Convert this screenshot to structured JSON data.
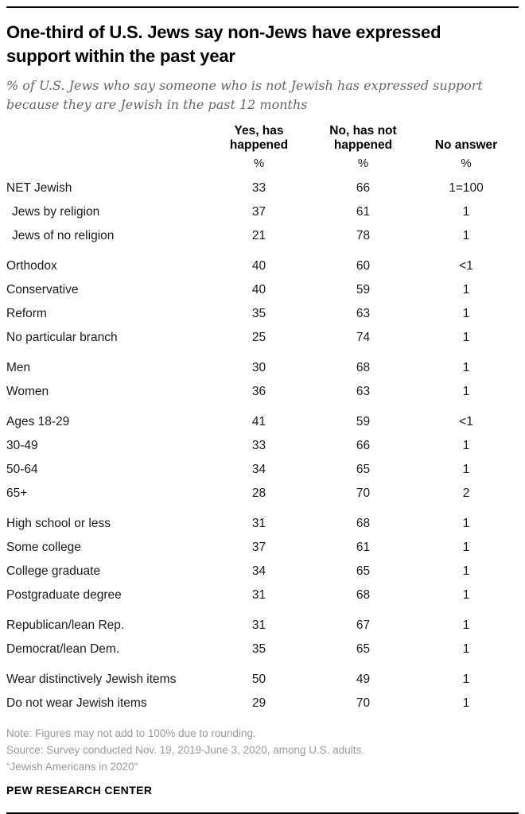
{
  "header": {
    "title": "One-third of U.S. Jews say non-Jews have expressed\nsupport within the past year",
    "subtitle": "% of U.S. Jews who say someone who is not Jewish has expressed support\nbecause they are Jewish in the past 12 months"
  },
  "table": {
    "columns": [
      "Yes, has\nhappened",
      "No, has not\nhappened",
      "No answer"
    ],
    "unit_row": [
      "%",
      "%",
      "%"
    ],
    "groups": [
      {
        "rows": [
          {
            "label": "NET Jewish",
            "indent": false,
            "values": [
              "33",
              "66",
              "1=100"
            ]
          },
          {
            "label": "Jews by religion",
            "indent": true,
            "values": [
              "37",
              "61",
              "1"
            ]
          },
          {
            "label": "Jews of no religion",
            "indent": true,
            "values": [
              "21",
              "78",
              "1"
            ]
          }
        ]
      },
      {
        "rows": [
          {
            "label": "Orthodox",
            "indent": false,
            "values": [
              "40",
              "60",
              "<1"
            ]
          },
          {
            "label": "Conservative",
            "indent": false,
            "values": [
              "40",
              "59",
              "1"
            ]
          },
          {
            "label": "Reform",
            "indent": false,
            "values": [
              "35",
              "63",
              "1"
            ]
          },
          {
            "label": "No particular branch",
            "indent": false,
            "values": [
              "25",
              "74",
              "1"
            ]
          }
        ]
      },
      {
        "rows": [
          {
            "label": "Men",
            "indent": false,
            "values": [
              "30",
              "68",
              "1"
            ]
          },
          {
            "label": "Women",
            "indent": false,
            "values": [
              "36",
              "63",
              "1"
            ]
          }
        ]
      },
      {
        "rows": [
          {
            "label": "Ages 18-29",
            "indent": false,
            "values": [
              "41",
              "59",
              "<1"
            ]
          },
          {
            "label": "30-49",
            "indent": false,
            "values": [
              "33",
              "66",
              "1"
            ]
          },
          {
            "label": "50-64",
            "indent": false,
            "values": [
              "34",
              "65",
              "1"
            ]
          },
          {
            "label": "65+",
            "indent": false,
            "values": [
              "28",
              "70",
              "2"
            ]
          }
        ]
      },
      {
        "rows": [
          {
            "label": "High school or less",
            "indent": false,
            "values": [
              "31",
              "68",
              "1"
            ]
          },
          {
            "label": "Some college",
            "indent": false,
            "values": [
              "37",
              "61",
              "1"
            ]
          },
          {
            "label": "College graduate",
            "indent": false,
            "values": [
              "34",
              "65",
              "1"
            ]
          },
          {
            "label": "Postgraduate degree",
            "indent": false,
            "values": [
              "31",
              "68",
              "1"
            ]
          }
        ]
      },
      {
        "rows": [
          {
            "label": "Republican/lean Rep.",
            "indent": false,
            "values": [
              "31",
              "67",
              "1"
            ]
          },
          {
            "label": "Democrat/lean Dem.",
            "indent": false,
            "values": [
              "35",
              "65",
              "1"
            ]
          }
        ]
      },
      {
        "rows": [
          {
            "label": "Wear distinctively Jewish items",
            "indent": false,
            "values": [
              "50",
              "49",
              "1"
            ]
          },
          {
            "label": "Do not wear Jewish items",
            "indent": false,
            "values": [
              "29",
              "70",
              "1"
            ]
          }
        ]
      }
    ]
  },
  "footer": {
    "note": "Note: Figures may not add to 100% due to rounding.",
    "source": "Source: Survey conducted Nov. 19, 2019-June 3, 2020, among U.S. adults.",
    "study": "“Jewish Americans in 2020”",
    "brand": "PEW RESEARCH CENTER"
  },
  "chart_data": {
    "type": "table",
    "title": "One-third of U.S. Jews say non-Jews have expressed support within the past year",
    "subtitle": "% of U.S. Jews who say someone who is not Jewish has expressed support because they are Jewish in the past 12 months",
    "unit": "%",
    "categories": [
      "NET Jewish",
      "Jews by religion",
      "Jews of no religion",
      "Orthodox",
      "Conservative",
      "Reform",
      "No particular branch",
      "Men",
      "Women",
      "Ages 18-29",
      "30-49",
      "50-64",
      "65+",
      "High school or less",
      "Some college",
      "College graduate",
      "Postgraduate degree",
      "Republican/lean Rep.",
      "Democrat/lean Dem.",
      "Wear distinctively Jewish items",
      "Do not wear Jewish items"
    ],
    "series": [
      {
        "name": "Yes, has happened",
        "values": [
          33,
          37,
          21,
          40,
          40,
          35,
          25,
          30,
          36,
          41,
          33,
          34,
          28,
          31,
          37,
          34,
          31,
          31,
          35,
          50,
          29
        ]
      },
      {
        "name": "No, has not happened",
        "values": [
          66,
          61,
          78,
          60,
          59,
          63,
          74,
          68,
          63,
          59,
          66,
          65,
          70,
          68,
          61,
          65,
          68,
          67,
          65,
          49,
          70
        ]
      },
      {
        "name": "No answer",
        "values": [
          "1=100",
          "1",
          "1",
          "<1",
          "1",
          "1",
          "1",
          "1",
          "1",
          "<1",
          "1",
          "1",
          "2",
          "1",
          "1",
          "1",
          "1",
          "1",
          "1",
          "1",
          "1"
        ]
      }
    ]
  }
}
